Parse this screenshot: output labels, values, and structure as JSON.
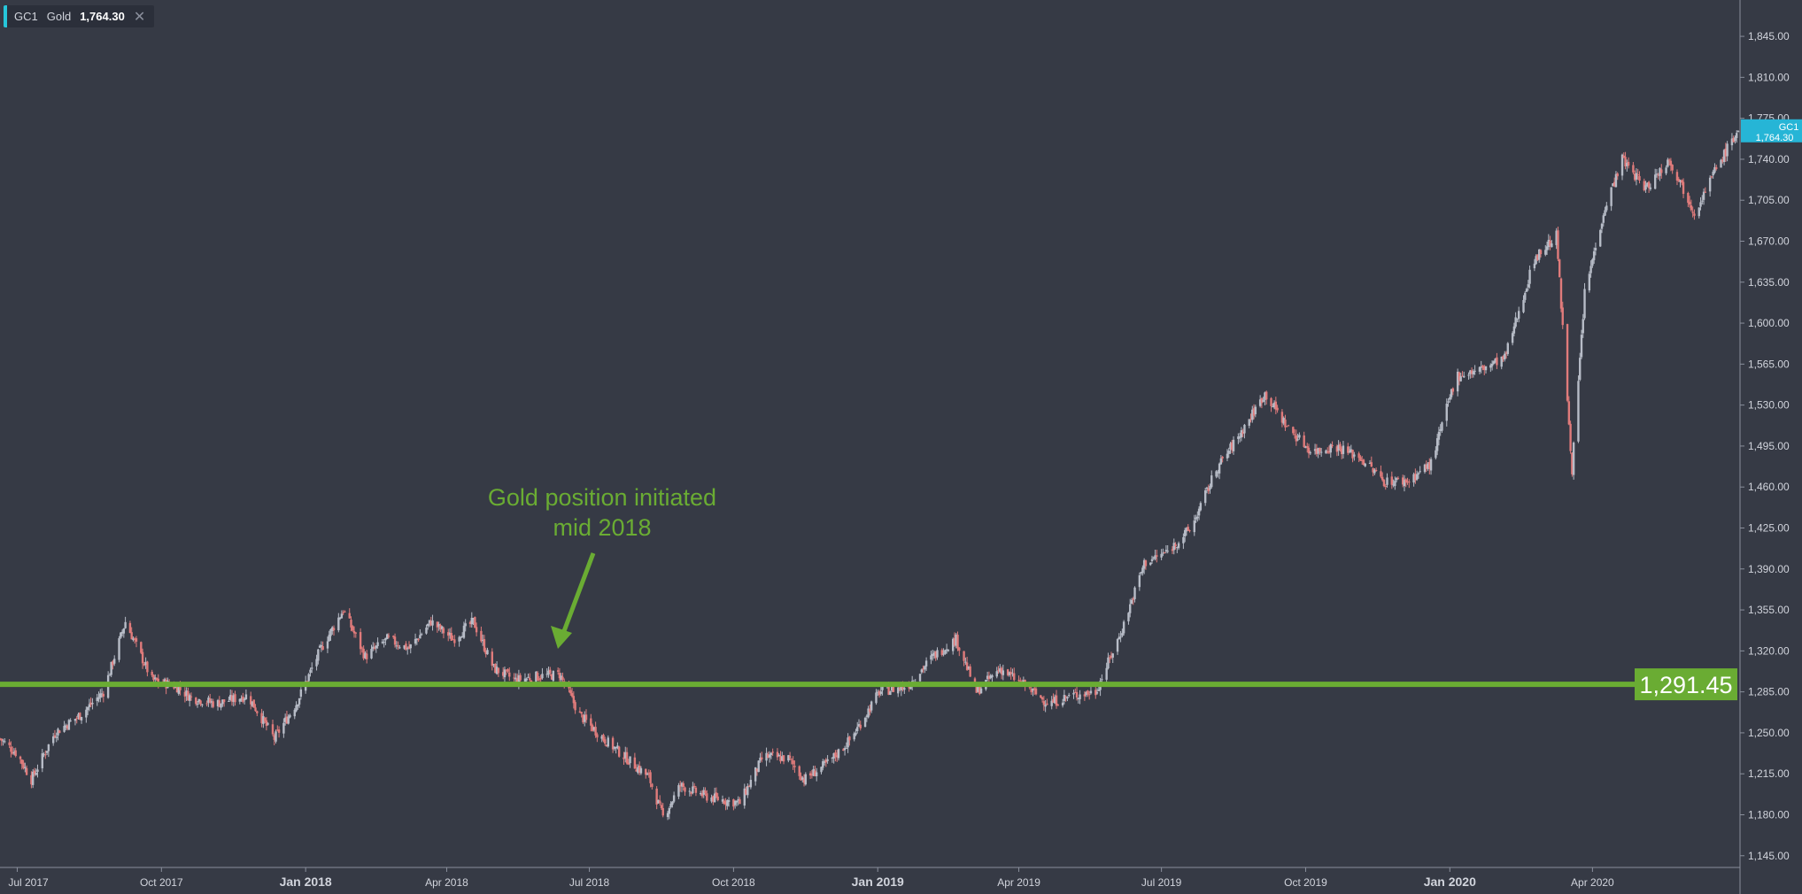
{
  "legend": {
    "symbol": "GC1",
    "name": "Gold",
    "price": "1,764.30",
    "close_icon": "close-icon"
  },
  "annotation": {
    "line1": "Gold position initiated",
    "line2": "mid 2018"
  },
  "colors": {
    "background": "#363a45",
    "up_candle": "#b7bcc7",
    "down_candle": "#e07b7b",
    "support_line": "#6aac33",
    "price_tag": "#26b5d6",
    "axis_text": "#d1d4dc"
  },
  "chart_data": {
    "type": "candlestick",
    "symbol": "GC1",
    "name": "Gold",
    "last_price": 1764.3,
    "last_price_label": "GC1",
    "last_price_text": "1,764.30",
    "horizontal_line": {
      "value": 1291.45,
      "label": "1,291.45"
    },
    "y_axis": {
      "range": [
        1135,
        1870
      ],
      "ticks": [
        1145,
        1180,
        1215,
        1250,
        1285,
        1320,
        1355,
        1390,
        1425,
        1460,
        1495,
        1530,
        1565,
        1600,
        1635,
        1670,
        1705,
        1740,
        1775,
        1810,
        1845
      ],
      "tick_labels": [
        "1,145.00",
        "1,180.00",
        "1,215.00",
        "1,250.00",
        "1,285.00",
        "1,320.00",
        "1,355.00",
        "1,390.00",
        "1,425.00",
        "1,460.00",
        "1,495.00",
        "1,530.00",
        "1,565.00",
        "1,600.00",
        "1,635.00",
        "1,670.00",
        "1,705.00",
        "1,740.00",
        "1,775.00",
        "1,810.00",
        "1,845.00"
      ]
    },
    "x_axis": {
      "range": [
        "2017-06-20",
        "2020-07-03"
      ],
      "ticks": [
        {
          "date": "2017-07-01",
          "label": "Jul 2017",
          "bold": false
        },
        {
          "date": "2017-10-01",
          "label": "Oct 2017",
          "bold": false
        },
        {
          "date": "2018-01-01",
          "label": "Jan 2018",
          "bold": true
        },
        {
          "date": "2018-04-01",
          "label": "Apr 2018",
          "bold": false
        },
        {
          "date": "2018-07-01",
          "label": "Jul 2018",
          "bold": false
        },
        {
          "date": "2018-10-01",
          "label": "Oct 2018",
          "bold": false
        },
        {
          "date": "2019-01-01",
          "label": "Jan 2019",
          "bold": true
        },
        {
          "date": "2019-04-01",
          "label": "Apr 2019",
          "bold": false
        },
        {
          "date": "2019-07-01",
          "label": "Jul 2019",
          "bold": false
        },
        {
          "date": "2019-10-01",
          "label": "Oct 2019",
          "bold": false
        },
        {
          "date": "2020-01-01",
          "label": "Jan 2020",
          "bold": true
        },
        {
          "date": "2020-04-01",
          "label": "Apr 2020",
          "bold": false
        }
      ]
    },
    "close_path": [
      [
        "2017-06-20",
        1245
      ],
      [
        "2017-07-01",
        1232
      ],
      [
        "2017-07-10",
        1210
      ],
      [
        "2017-07-25",
        1250
      ],
      [
        "2017-08-10",
        1265
      ],
      [
        "2017-08-25",
        1285
      ],
      [
        "2017-09-08",
        1345
      ],
      [
        "2017-09-25",
        1295
      ],
      [
        "2017-10-10",
        1290
      ],
      [
        "2017-10-20",
        1280
      ],
      [
        "2017-11-05",
        1275
      ],
      [
        "2017-11-25",
        1282
      ],
      [
        "2017-12-12",
        1245
      ],
      [
        "2017-12-26",
        1275
      ],
      [
        "2018-01-10",
        1320
      ],
      [
        "2018-01-25",
        1355
      ],
      [
        "2018-02-08",
        1315
      ],
      [
        "2018-02-22",
        1330
      ],
      [
        "2018-03-08",
        1322
      ],
      [
        "2018-03-22",
        1345
      ],
      [
        "2018-04-05",
        1330
      ],
      [
        "2018-04-18",
        1345
      ],
      [
        "2018-05-01",
        1305
      ],
      [
        "2018-05-15",
        1295
      ],
      [
        "2018-05-28",
        1298
      ],
      [
        "2018-06-12",
        1300
      ],
      [
        "2018-06-25",
        1265
      ],
      [
        "2018-07-10",
        1245
      ],
      [
        "2018-07-25",
        1228
      ],
      [
        "2018-08-08",
        1212
      ],
      [
        "2018-08-17",
        1178
      ],
      [
        "2018-08-28",
        1205
      ],
      [
        "2018-09-15",
        1195
      ],
      [
        "2018-10-05",
        1190
      ],
      [
        "2018-10-20",
        1230
      ],
      [
        "2018-11-05",
        1228
      ],
      [
        "2018-11-15",
        1210
      ],
      [
        "2018-12-01",
        1225
      ],
      [
        "2018-12-15",
        1245
      ],
      [
        "2019-01-02",
        1285
      ],
      [
        "2019-01-20",
        1290
      ],
      [
        "2019-02-05",
        1315
      ],
      [
        "2019-02-20",
        1330
      ],
      [
        "2019-03-05",
        1285
      ],
      [
        "2019-03-20",
        1305
      ],
      [
        "2019-04-05",
        1290
      ],
      [
        "2019-04-20",
        1275
      ],
      [
        "2019-05-05",
        1282
      ],
      [
        "2019-05-20",
        1285
      ],
      [
        "2019-06-05",
        1335
      ],
      [
        "2019-06-20",
        1395
      ],
      [
        "2019-07-05",
        1405
      ],
      [
        "2019-07-20",
        1425
      ],
      [
        "2019-08-05",
        1475
      ],
      [
        "2019-08-20",
        1505
      ],
      [
        "2019-09-05",
        1540
      ],
      [
        "2019-09-20",
        1510
      ],
      [
        "2019-10-05",
        1490
      ],
      [
        "2019-10-20",
        1495
      ],
      [
        "2019-11-05",
        1485
      ],
      [
        "2019-11-20",
        1465
      ],
      [
        "2019-12-05",
        1465
      ],
      [
        "2019-12-20",
        1480
      ],
      [
        "2020-01-05",
        1555
      ],
      [
        "2020-01-20",
        1560
      ],
      [
        "2020-02-05",
        1570
      ],
      [
        "2020-02-24",
        1655
      ],
      [
        "2020-03-09",
        1675
      ],
      [
        "2020-03-19",
        1475
      ],
      [
        "2020-03-27",
        1625
      ],
      [
        "2020-04-08",
        1695
      ],
      [
        "2020-04-20",
        1740
      ],
      [
        "2020-05-05",
        1715
      ],
      [
        "2020-05-20",
        1740
      ],
      [
        "2020-06-05",
        1695
      ],
      [
        "2020-06-20",
        1735
      ],
      [
        "2020-07-03",
        1765
      ]
    ]
  }
}
